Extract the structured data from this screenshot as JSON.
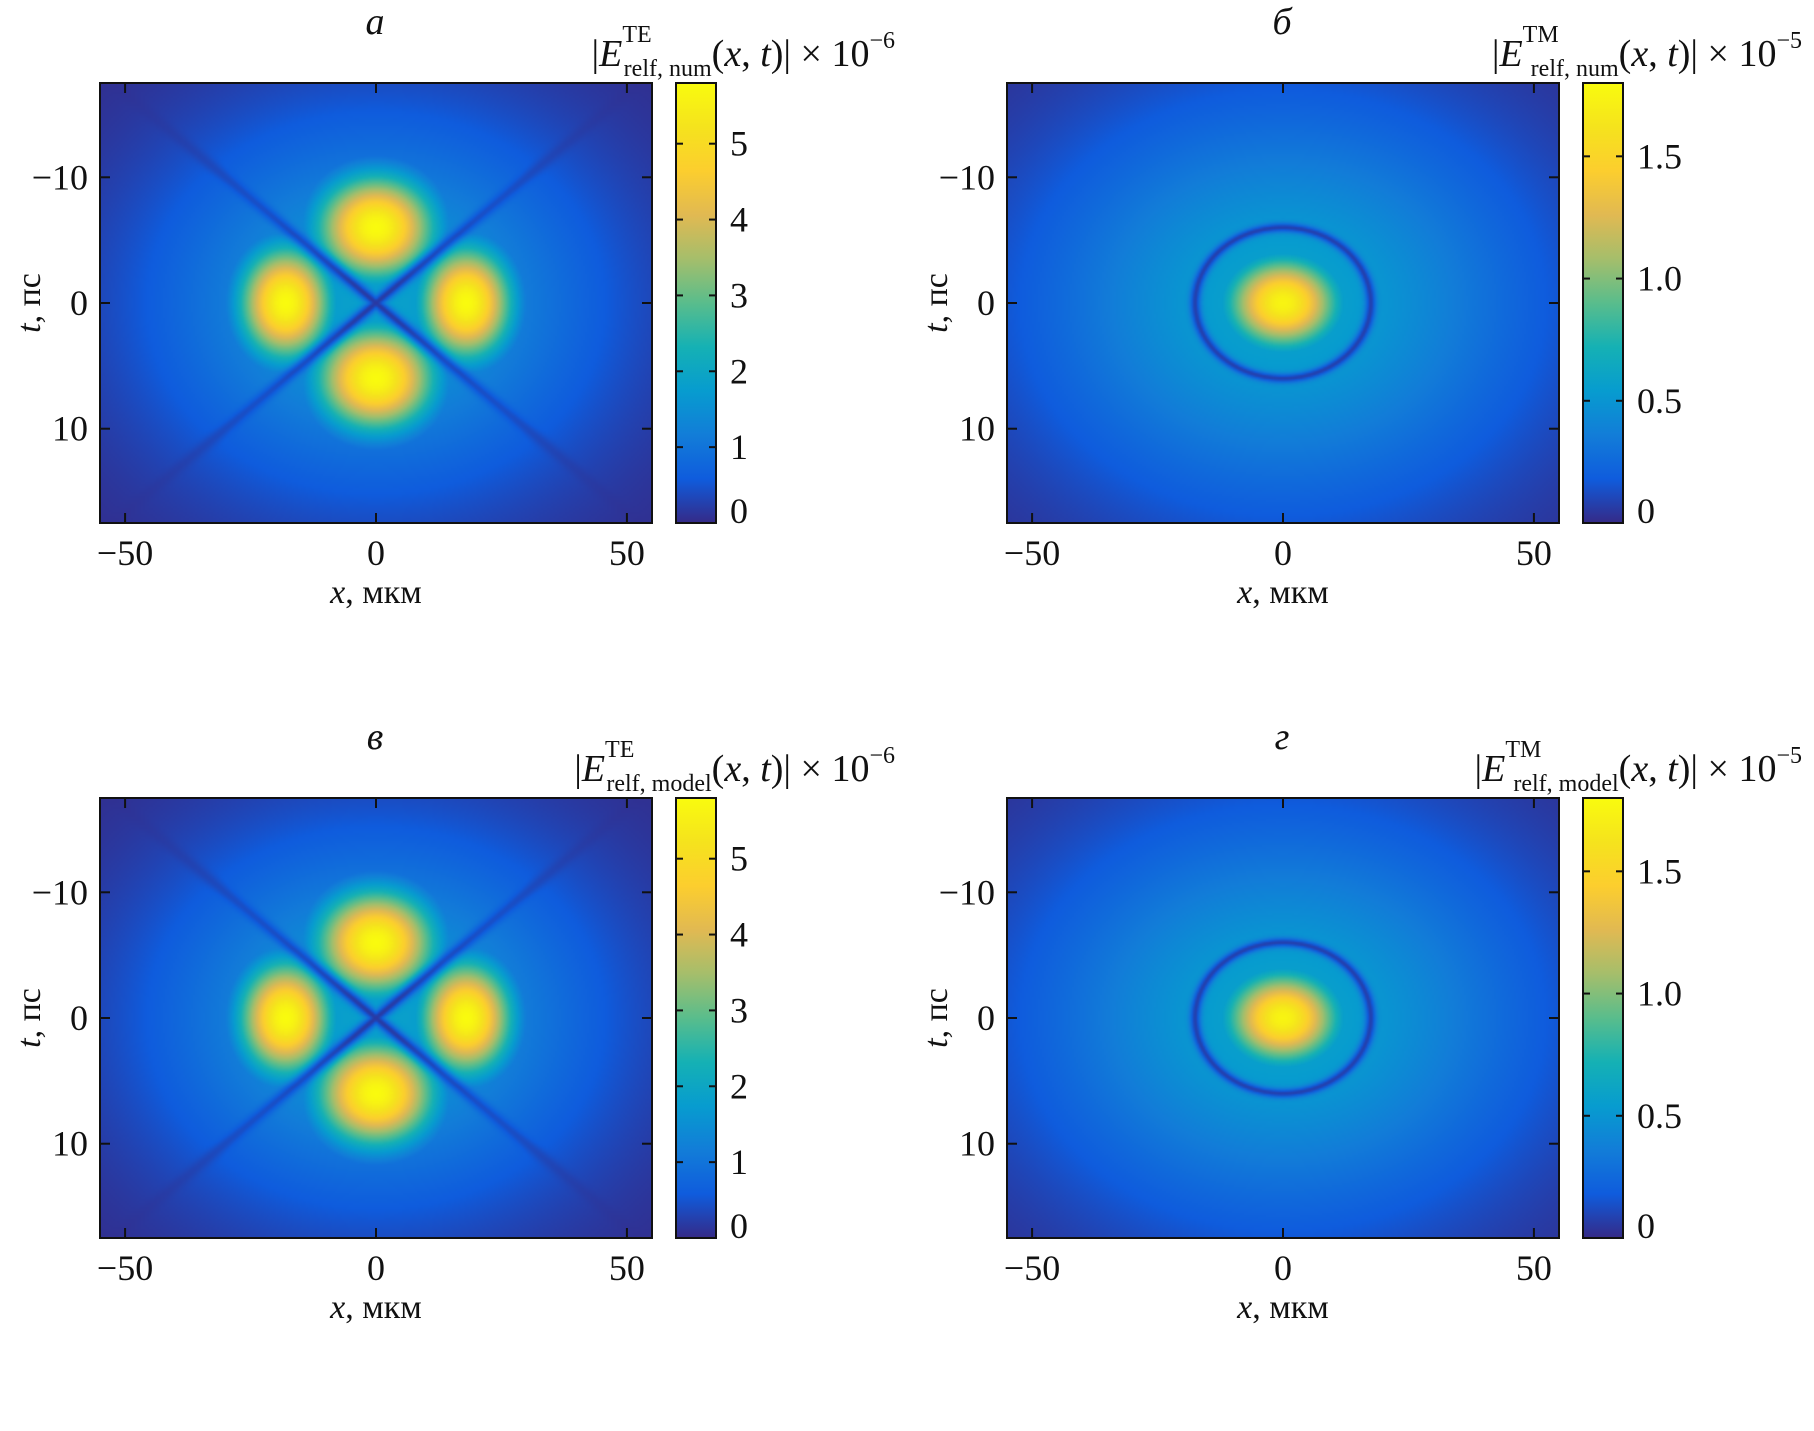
{
  "chart_data": [
    {
      "type": "heatmap",
      "panel_letter": "а",
      "colorbar_title": {
        "prefix": "|E",
        "sup": "TE",
        "sub": "relf, num",
        "suffix": "(x, t)| × 10",
        "exponent": "−6"
      },
      "xlabel": {
        "var": "x",
        "unit": ", мкм"
      },
      "ylabel": {
        "var": "t",
        "unit": ", пс"
      },
      "xlim": [
        -55,
        55
      ],
      "ylim": [
        -17.5,
        17.5
      ],
      "x_ticks": [
        -50,
        0,
        50
      ],
      "x_tick_labels": [
        "−50",
        "0",
        "50"
      ],
      "y_ticks": [
        -10,
        0,
        10
      ],
      "y_tick_labels": [
        "−10",
        "0",
        "10"
      ],
      "y_reversed": true,
      "colorbar_range": [
        0,
        5.8
      ],
      "colorbar_ticks": [
        0,
        1,
        2,
        3,
        4,
        5
      ],
      "colorbar_tick_labels": [
        "0",
        "1",
        "2",
        "3",
        "4",
        "5"
      ],
      "colormap": "parula",
      "pattern": "four-lobe",
      "peak_value": 5.8,
      "lobe_centers": [
        [
          0,
          -6
        ],
        [
          0,
          6
        ],
        [
          -18,
          0
        ],
        [
          18,
          0
        ]
      ],
      "lobe_sigma": {
        "x": 8.5,
        "t": 3.0
      },
      "background_level": 0.35
    },
    {
      "type": "heatmap",
      "panel_letter": "б",
      "colorbar_title": {
        "prefix": "|E",
        "sup": "TM",
        "sub": "relf, num",
        "suffix": "(x, t)| × 10",
        "exponent": "−5"
      },
      "xlabel": {
        "var": "x",
        "unit": ", мкм"
      },
      "ylabel": {
        "var": "t",
        "unit": ", пс"
      },
      "xlim": [
        -55,
        55
      ],
      "ylim": [
        -17.5,
        17.5
      ],
      "x_ticks": [
        -50,
        0,
        50
      ],
      "x_tick_labels": [
        "−50",
        "0",
        "50"
      ],
      "y_ticks": [
        -10,
        0,
        10
      ],
      "y_tick_labels": [
        "−10",
        "0",
        "10"
      ],
      "y_reversed": true,
      "colorbar_range": [
        0,
        1.8
      ],
      "colorbar_ticks": [
        0,
        0.5,
        1.0,
        1.5
      ],
      "colorbar_tick_labels": [
        "0",
        "0.5",
        "1.0",
        "1.5"
      ],
      "colormap": "parula",
      "pattern": "central-spot-with-ring",
      "peak_value": 1.75,
      "spot_sigma": {
        "x": 8.0,
        "t": 2.6
      },
      "ring_radius": {
        "x": 17.5,
        "t": 6.0
      },
      "background_level": 0.3
    },
    {
      "type": "heatmap",
      "panel_letter": "в",
      "colorbar_title": {
        "prefix": "|E",
        "sup": "TE",
        "sub": "relf, model",
        "suffix": "(x, t)| × 10",
        "exponent": "−6"
      },
      "xlabel": {
        "var": "x",
        "unit": ", мкм"
      },
      "ylabel": {
        "var": "t",
        "unit": ", пс"
      },
      "xlim": [
        -55,
        55
      ],
      "ylim": [
        -17.5,
        17.5
      ],
      "x_ticks": [
        -50,
        0,
        50
      ],
      "x_tick_labels": [
        "−50",
        "0",
        "50"
      ],
      "y_ticks": [
        -10,
        0,
        10
      ],
      "y_tick_labels": [
        "−10",
        "0",
        "10"
      ],
      "y_reversed": true,
      "colorbar_range": [
        0,
        5.8
      ],
      "colorbar_ticks": [
        0,
        1,
        2,
        3,
        4,
        5
      ],
      "colorbar_tick_labels": [
        "0",
        "1",
        "2",
        "3",
        "4",
        "5"
      ],
      "colormap": "parula",
      "pattern": "four-lobe",
      "peak_value": 5.8,
      "lobe_centers": [
        [
          0,
          -6
        ],
        [
          0,
          6
        ],
        [
          -18,
          0
        ],
        [
          18,
          0
        ]
      ],
      "lobe_sigma": {
        "x": 8.5,
        "t": 3.0
      },
      "background_level": 0.35
    },
    {
      "type": "heatmap",
      "panel_letter": "г",
      "colorbar_title": {
        "prefix": "|E",
        "sup": "TM",
        "sub": "relf, model",
        "suffix": "(x, t)| × 10",
        "exponent": "−5"
      },
      "xlabel": {
        "var": "x",
        "unit": ", мкм"
      },
      "ylabel": {
        "var": "t",
        "unit": ", пс"
      },
      "xlim": [
        -55,
        55
      ],
      "ylim": [
        -17.5,
        17.5
      ],
      "x_ticks": [
        -50,
        0,
        50
      ],
      "x_tick_labels": [
        "−50",
        "0",
        "50"
      ],
      "y_ticks": [
        -10,
        0,
        10
      ],
      "y_tick_labels": [
        "−10",
        "0",
        "10"
      ],
      "y_reversed": true,
      "colorbar_range": [
        0,
        1.8
      ],
      "colorbar_ticks": [
        0,
        0.5,
        1.0,
        1.5
      ],
      "colorbar_tick_labels": [
        "0",
        "0.5",
        "1.0",
        "1.5"
      ],
      "colormap": "parula",
      "pattern": "central-spot-with-ring",
      "peak_value": 1.75,
      "spot_sigma": {
        "x": 8.0,
        "t": 2.6
      },
      "ring_radius": {
        "x": 17.5,
        "t": 6.0
      },
      "background_level": 0.3
    }
  ]
}
